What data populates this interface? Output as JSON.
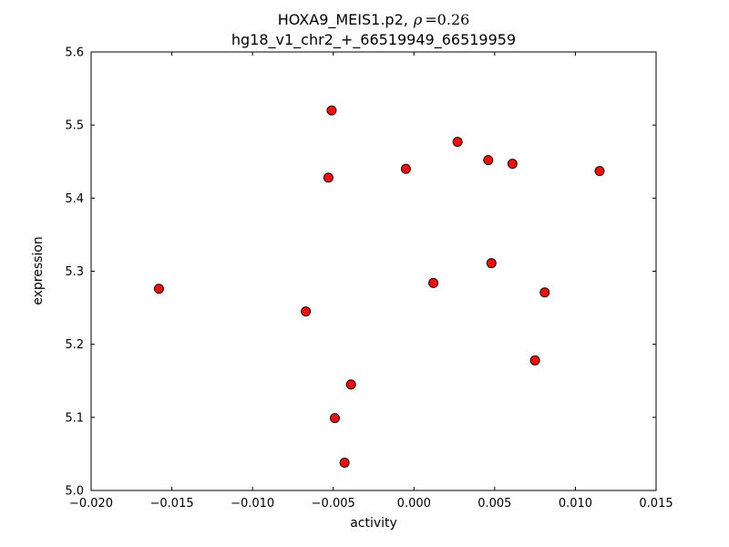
{
  "figure": {
    "background": "#ffffff",
    "frame_color": "#000000"
  },
  "chart_data": {
    "type": "scatter",
    "title": "HOXA9_MEIS1.p2, ρ=0.26",
    "title_parts": {
      "prefix": "HOXA9_MEIS1.p2,",
      "rho": "ρ",
      "equals_value": "=0.26"
    },
    "title_line2": "hg18_v1_chr2_+_66519949_66519959",
    "correlation_rho": 0.26,
    "xlabel": "activity",
    "ylabel": "expression",
    "xlim": [
      -0.02,
      0.015
    ],
    "ylim": [
      5.0,
      5.6
    ],
    "xticks": [
      -0.02,
      -0.015,
      -0.01,
      -0.005,
      0.0,
      0.005,
      0.01,
      0.015
    ],
    "xtick_labels": [
      "−0.020",
      "−0.015",
      "−0.010",
      "−0.005",
      "0.000",
      "0.005",
      "0.010",
      "0.015"
    ],
    "yticks": [
      5.0,
      5.1,
      5.2,
      5.3,
      5.4,
      5.5,
      5.6
    ],
    "ytick_labels": [
      "5.0",
      "5.1",
      "5.2",
      "5.3",
      "5.4",
      "5.5",
      "5.6"
    ],
    "grid": false,
    "legend": null,
    "marker": {
      "shape": "circle",
      "fill": "#ee1111",
      "edge": "#1a0000",
      "radius": 5
    },
    "points": [
      {
        "x": -0.0158,
        "y": 5.276
      },
      {
        "x": -0.0067,
        "y": 5.245
      },
      {
        "x": -0.0053,
        "y": 5.428
      },
      {
        "x": -0.0051,
        "y": 5.52
      },
      {
        "x": -0.0049,
        "y": 5.099
      },
      {
        "x": -0.0043,
        "y": 5.038
      },
      {
        "x": -0.0039,
        "y": 5.145
      },
      {
        "x": -0.0005,
        "y": 5.44
      },
      {
        "x": 0.0012,
        "y": 5.284
      },
      {
        "x": 0.0027,
        "y": 5.477
      },
      {
        "x": 0.0046,
        "y": 5.452
      },
      {
        "x": 0.0048,
        "y": 5.311
      },
      {
        "x": 0.0061,
        "y": 5.447
      },
      {
        "x": 0.0075,
        "y": 5.178
      },
      {
        "x": 0.0081,
        "y": 5.271
      },
      {
        "x": 0.0115,
        "y": 5.437
      }
    ]
  }
}
